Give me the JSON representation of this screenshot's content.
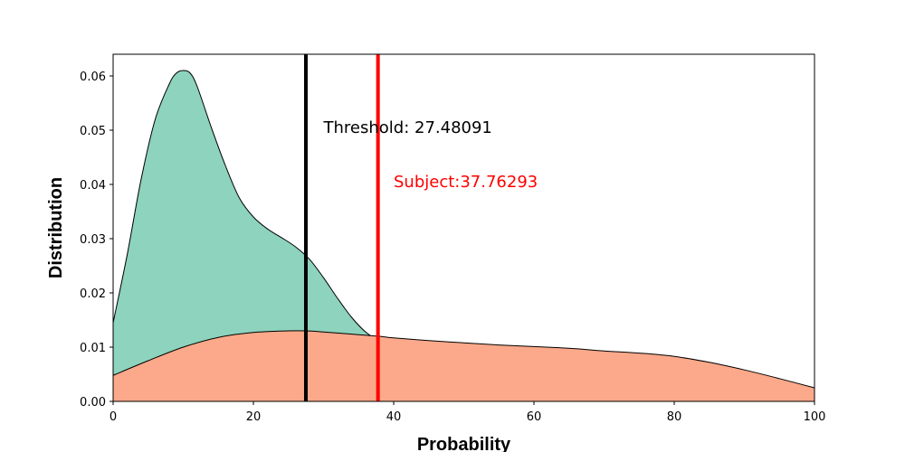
{
  "chart_data": {
    "type": "area",
    "xlabel": "Probability",
    "ylabel": "Distribution",
    "xlim": [
      0,
      100
    ],
    "ylim": [
      0,
      0.064
    ],
    "xticks": [
      0,
      20,
      40,
      60,
      80,
      100
    ],
    "xtick_labels": [
      "0",
      "20",
      "40",
      "60",
      "80",
      "100"
    ],
    "yticks": [
      0,
      0.01,
      0.02,
      0.03,
      0.04,
      0.05,
      0.06
    ],
    "ytick_labels": [
      "0.00",
      "0.01",
      "0.02",
      "0.03",
      "0.04",
      "0.05",
      "0.06"
    ],
    "grid": false,
    "series": [
      {
        "color": "#8dd3bd",
        "x": [
          0,
          2,
          4,
          6,
          8,
          9,
          10,
          11,
          12,
          14,
          16,
          18,
          20,
          22,
          24,
          26,
          28,
          30,
          32,
          34,
          36,
          38,
          40,
          45,
          50,
          55,
          58,
          62,
          66,
          70,
          75,
          80,
          85,
          90,
          95,
          100
        ],
        "y": [
          0.0145,
          0.027,
          0.041,
          0.052,
          0.0585,
          0.0605,
          0.061,
          0.0605,
          0.058,
          0.0505,
          0.0435,
          0.0375,
          0.034,
          0.0318,
          0.0302,
          0.0285,
          0.0262,
          0.0228,
          0.019,
          0.0155,
          0.0128,
          0.0112,
          0.0107,
          0.0099,
          0.0092,
          0.0084,
          0.0085,
          0.0087,
          0.0078,
          0.0067,
          0.0058,
          0.0058,
          0.0049,
          0.0037,
          0.0028,
          0.0018
        ]
      },
      {
        "color": "#fba98a",
        "x": [
          0,
          5,
          10,
          15,
          20,
          25,
          27.5,
          30,
          35,
          38,
          40,
          45,
          50,
          55,
          60,
          65,
          70,
          75,
          80,
          85,
          90,
          95,
          100
        ],
        "y": [
          0.0048,
          0.0075,
          0.01,
          0.0118,
          0.0127,
          0.013,
          0.013,
          0.0128,
          0.0123,
          0.012,
          0.0117,
          0.0112,
          0.0108,
          0.0104,
          0.0101,
          0.0098,
          0.0093,
          0.0089,
          0.0083,
          0.0072,
          0.0058,
          0.0042,
          0.0025
        ]
      }
    ],
    "vlines": [
      {
        "x": 27.48091,
        "color": "#000000",
        "label": "Threshold: 27.48091",
        "label_x": 30,
        "label_y": 0.0505
      },
      {
        "x": 37.76293,
        "color": "#ff0000",
        "label": "Subject:37.76293",
        "label_x": 40,
        "label_y": 0.0405
      }
    ]
  }
}
